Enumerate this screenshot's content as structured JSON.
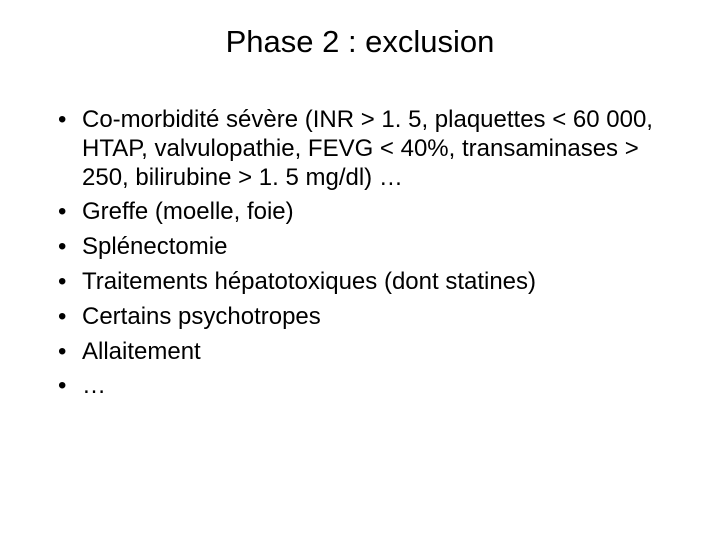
{
  "slide": {
    "title": "Phase 2 : exclusion",
    "bullets": [
      "Co-morbidité sévère (INR > 1. 5, plaquettes < 60 000, HTAP, valvulopathie, FEVG < 40%, transaminases > 250, bilirubine > 1. 5 mg/dl) …",
      "Greffe (moelle, foie)",
      "Splénectomie",
      "Traitements hépatotoxiques (dont statines)",
      "Certains psychotropes",
      "Allaitement",
      "…"
    ],
    "background_color": "#ffffff",
    "text_color": "#000000",
    "title_fontsize": 31,
    "body_fontsize": 24
  }
}
